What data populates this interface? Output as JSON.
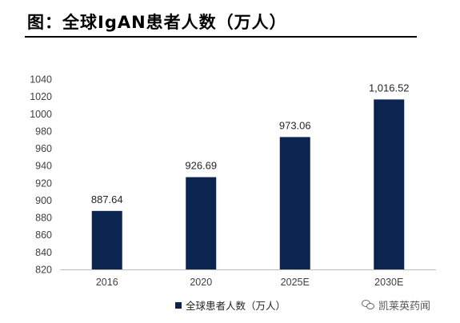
{
  "header": {
    "title": "图：全球IgAN患者人数（万人）"
  },
  "watermark": {
    "icon": "wechat-icon",
    "text": "凯莱英药闻"
  },
  "colors": {
    "bar": "#0b2550",
    "axis": "#bfbfbf",
    "tick_text": "#404040"
  },
  "chart_data": {
    "type": "bar",
    "categories": [
      "2016",
      "2020",
      "2025E",
      "2030E"
    ],
    "series": [
      {
        "name": "全球患者人数（万人）",
        "values": [
          887.64,
          926.69,
          973.06,
          1016.52
        ],
        "labels": [
          "887.64",
          "926.69",
          "973.06",
          "1,016.52"
        ]
      }
    ],
    "ylim": [
      820,
      1040
    ],
    "yticks": [
      820,
      840,
      860,
      880,
      900,
      920,
      940,
      960,
      980,
      1000,
      1020,
      1040
    ],
    "legend": "bottom",
    "grid": false
  }
}
